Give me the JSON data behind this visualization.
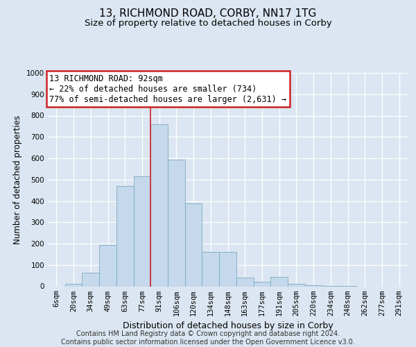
{
  "title": "13, RICHMOND ROAD, CORBY, NN17 1TG",
  "subtitle": "Size of property relative to detached houses in Corby",
  "xlabel": "Distribution of detached houses by size in Corby",
  "ylabel": "Number of detached properties",
  "categories": [
    "6sqm",
    "20sqm",
    "34sqm",
    "49sqm",
    "63sqm",
    "77sqm",
    "91sqm",
    "106sqm",
    "120sqm",
    "134sqm",
    "148sqm",
    "163sqm",
    "177sqm",
    "191sqm",
    "205sqm",
    "220sqm",
    "234sqm",
    "248sqm",
    "262sqm",
    "277sqm",
    "291sqm"
  ],
  "values": [
    0,
    13,
    63,
    195,
    470,
    515,
    760,
    595,
    390,
    160,
    160,
    40,
    22,
    43,
    10,
    6,
    2,
    1,
    0,
    0,
    0
  ],
  "bar_color": "#c5d8ec",
  "bar_edge_color": "#7aaabf",
  "vline_x": 5.5,
  "annotation_text_line1": "13 RICHMOND ROAD: 92sqm",
  "annotation_text_line2": "← 22% of detached houses are smaller (734)",
  "annotation_text_line3": "77% of semi-detached houses are larger (2,631) →",
  "vline_color": "#cc2222",
  "annotation_box_facecolor": "#ffffff",
  "annotation_box_edgecolor": "#cc2222",
  "ylim": [
    0,
    1000
  ],
  "yticks": [
    0,
    100,
    200,
    300,
    400,
    500,
    600,
    700,
    800,
    900,
    1000
  ],
  "grid_color": "#d0d8e8",
  "background_color": "#dce6f2",
  "footer_line1": "Contains HM Land Registry data © Crown copyright and database right 2024.",
  "footer_line2": "Contains public sector information licensed under the Open Government Licence v3.0.",
  "title_fontsize": 11,
  "subtitle_fontsize": 9.5,
  "xlabel_fontsize": 9,
  "ylabel_fontsize": 8.5,
  "tick_fontsize": 7.5,
  "annotation_fontsize": 8.5,
  "footer_fontsize": 7
}
